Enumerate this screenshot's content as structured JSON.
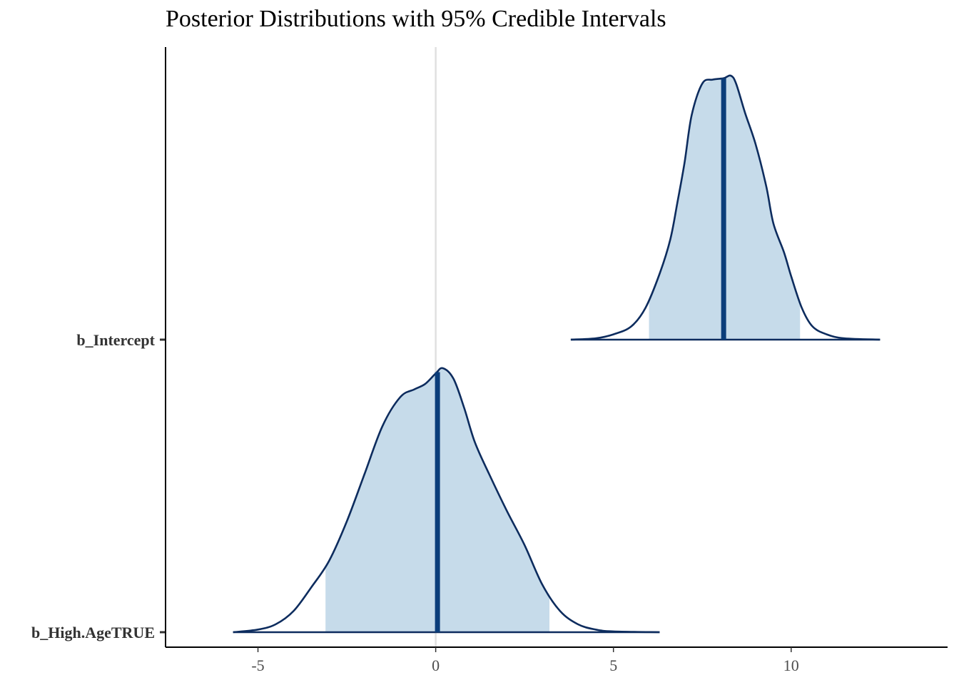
{
  "chart_data": {
    "type": "area",
    "title": "Posterior Distributions with 95% Credible Intervals",
    "xlabel": "",
    "ylabel": "",
    "xlim": [
      -7.6,
      14.4
    ],
    "x_ticks": [
      -5,
      0,
      5,
      10
    ],
    "x_tick_labels": [
      "-5",
      "0",
      "5",
      "10"
    ],
    "reference_line_x": 0,
    "grid": false,
    "legend": "none",
    "colors": {
      "outline": "#0d2c5e",
      "fill": "#c6dbea",
      "median": "#0b3d7a",
      "reference": "#e0e0e0",
      "axis": "#000000"
    },
    "series": [
      {
        "name": "b_Intercept",
        "median": 8.1,
        "ci95": [
          6.0,
          10.25
        ],
        "density_x": [
          3.8,
          4.5,
          5.0,
          5.5,
          5.9,
          6.3,
          6.6,
          6.8,
          7.0,
          7.2,
          7.5,
          7.8,
          8.1,
          8.3,
          8.45,
          8.7,
          9.0,
          9.3,
          9.5,
          9.8,
          10.0,
          10.3,
          10.6,
          11.0,
          11.5,
          12.5
        ],
        "density_y": [
          0.0,
          0.005,
          0.02,
          0.05,
          0.12,
          0.25,
          0.38,
          0.52,
          0.67,
          0.85,
          0.97,
          0.985,
          0.99,
          1.0,
          0.97,
          0.86,
          0.74,
          0.58,
          0.44,
          0.33,
          0.24,
          0.12,
          0.05,
          0.02,
          0.005,
          0.0
        ]
      },
      {
        "name": "b_High.AgeTRUE",
        "median": 0.05,
        "ci95": [
          -3.1,
          3.2
        ],
        "density_x": [
          -5.7,
          -5.0,
          -4.5,
          -4.0,
          -3.5,
          -3.0,
          -2.5,
          -2.0,
          -1.5,
          -1.0,
          -0.6,
          -0.3,
          0.0,
          0.2,
          0.5,
          0.8,
          1.1,
          1.5,
          2.0,
          2.5,
          3.0,
          3.5,
          4.0,
          4.5,
          5.0,
          6.3
        ],
        "density_y": [
          0.0,
          0.01,
          0.03,
          0.08,
          0.17,
          0.27,
          0.42,
          0.6,
          0.78,
          0.89,
          0.92,
          0.94,
          0.98,
          1.0,
          0.96,
          0.85,
          0.72,
          0.6,
          0.46,
          0.33,
          0.18,
          0.08,
          0.03,
          0.01,
          0.003,
          0.0
        ]
      }
    ]
  }
}
